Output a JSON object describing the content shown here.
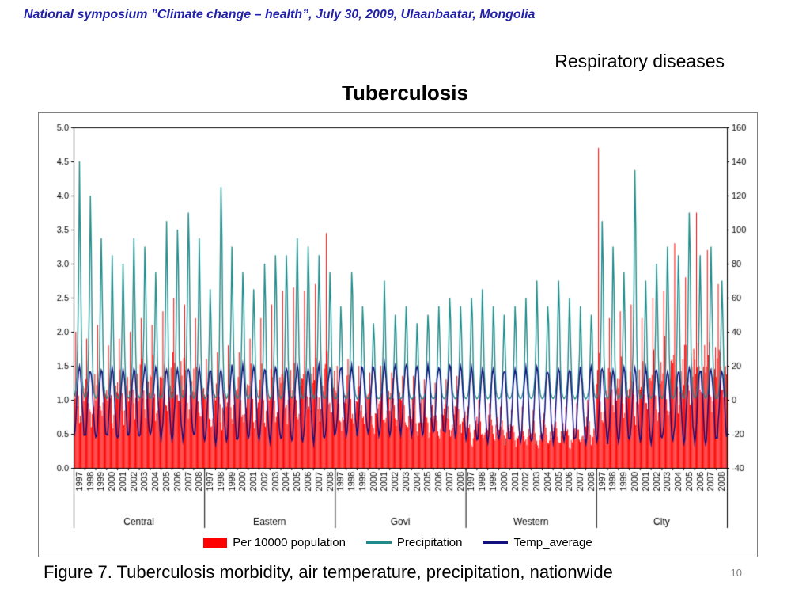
{
  "slide": {
    "header": "National symposium ”Climate change – health”, July 30, 2009, Ulaanbaatar, Mongolia",
    "subtitle": "Respiratory diseases",
    "title": "Tuberculosis",
    "caption": "Figure 7. Tuberculosis morbidity, air temperature, precipitation, nationwide",
    "page_number": "10",
    "colors": {
      "header_text": "#2222aa",
      "page_number": "#808080",
      "background": "#ffffff"
    }
  },
  "chart_data": {
    "type": "composite",
    "title": "Tuberculosis",
    "x_structure": {
      "regions": [
        "Central",
        "Eastern",
        "Govi",
        "Western",
        "City"
      ],
      "years": [
        "1997",
        "1998",
        "1999",
        "2000",
        "2001",
        "2002",
        "2003",
        "2004",
        "2005",
        "2006",
        "2007",
        "2008"
      ],
      "months_per_year": 12
    },
    "left_axis": {
      "min": 0,
      "max": 5,
      "step": 0.5,
      "tick_labels": [
        "0.0",
        "0.5",
        "1.0",
        "1.5",
        "2.0",
        "2.5",
        "3.0",
        "3.5",
        "4.0",
        "4.5",
        "5.0"
      ]
    },
    "right_axis": {
      "min": -40,
      "max": 160,
      "step": 20,
      "tick_labels": [
        "-40",
        "-20",
        "0",
        "20",
        "40",
        "60",
        "80",
        "100",
        "120",
        "140",
        "160"
      ]
    },
    "grid": false,
    "legend_position": "bottom",
    "series": [
      {
        "name": "Per 10000 population",
        "type": "bar",
        "axis": "left",
        "color": "#ff0000",
        "monthly_profile": [
          1.1,
          1.2,
          1.4,
          1.3,
          1.1,
          0.9,
          0.75,
          0.7,
          0.8,
          0.95,
          1.05,
          1.1
        ],
        "annual_base": {
          "Central": [
            1.0,
            1.05,
            1.1,
            1.0,
            1.05,
            1.1,
            1.15,
            1.1,
            1.2,
            1.25,
            1.2,
            1.15
          ],
          "Eastern": [
            0.9,
            0.95,
            1.0,
            0.95,
            1.0,
            1.05,
            1.1,
            1.1,
            1.15,
            1.1,
            1.15,
            1.2
          ],
          "Govi": [
            0.9,
            0.95,
            0.9,
            0.85,
            0.9,
            0.85,
            0.8,
            0.8,
            0.75,
            0.7,
            0.7,
            0.75
          ],
          "Western": [
            0.55,
            0.6,
            0.6,
            0.55,
            0.5,
            0.5,
            0.45,
            0.5,
            0.5,
            0.45,
            0.5,
            0.55
          ],
          "City": [
            1.1,
            1.15,
            1.2,
            1.1,
            1.15,
            1.2,
            1.25,
            1.3,
            1.35,
            1.4,
            1.45,
            1.4
          ]
        },
        "annual_peak": {
          "Central": [
            2.0,
            1.9,
            2.1,
            1.8,
            1.9,
            2.0,
            2.2,
            2.1,
            2.3,
            2.5,
            2.4,
            2.2
          ],
          "Eastern": [
            1.6,
            1.7,
            1.8,
            1.7,
            1.9,
            2.2,
            2.4,
            2.6,
            2.65,
            2.6,
            2.7,
            3.45
          ],
          "Govi": [
            1.5,
            1.6,
            1.5,
            1.4,
            1.5,
            1.4,
            1.35,
            1.35,
            1.3,
            1.25,
            1.3,
            1.35
          ],
          "Western": [
            0.9,
            1.0,
            0.95,
            0.9,
            0.85,
            0.9,
            0.85,
            0.8,
            0.85,
            0.9,
            0.95,
            1.0
          ],
          "City": [
            4.7,
            2.2,
            2.3,
            2.4,
            2.2,
            2.5,
            2.6,
            3.3,
            2.8,
            3.75,
            3.2,
            2.7
          ]
        }
      },
      {
        "name": "Precipitation",
        "type": "line",
        "axis": "right",
        "color": "#1f8a8a",
        "monthly_profile_pct": [
          1,
          2,
          4,
          9,
          22,
          55,
          100,
          72,
          28,
          10,
          4,
          2
        ],
        "annual_peak": {
          "Central": [
            140,
            120,
            95,
            85,
            80,
            95,
            90,
            75,
            105,
            100,
            110,
            95
          ],
          "Eastern": [
            65,
            125,
            90,
            75,
            65,
            80,
            85,
            85,
            95,
            90,
            85,
            75
          ],
          "Govi": [
            55,
            75,
            55,
            45,
            70,
            50,
            55,
            45,
            50,
            55,
            60,
            55
          ],
          "Western": [
            60,
            65,
            55,
            50,
            55,
            60,
            70,
            55,
            70,
            60,
            55,
            50
          ],
          "City": [
            105,
            90,
            75,
            135,
            70,
            80,
            90,
            85,
            110,
            85,
            90,
            70
          ]
        }
      },
      {
        "name": "Temp_average",
        "type": "line",
        "axis": "right",
        "color": "#10107e",
        "range_by_region": {
          "Central": {
            "min": -22,
            "max": 18
          },
          "Eastern": {
            "min": -24,
            "max": 19
          },
          "Govi": {
            "min": -20,
            "max": 20
          },
          "Western": {
            "min": -24,
            "max": 18
          },
          "City": {
            "min": -24,
            "max": 18
          }
        }
      }
    ]
  }
}
